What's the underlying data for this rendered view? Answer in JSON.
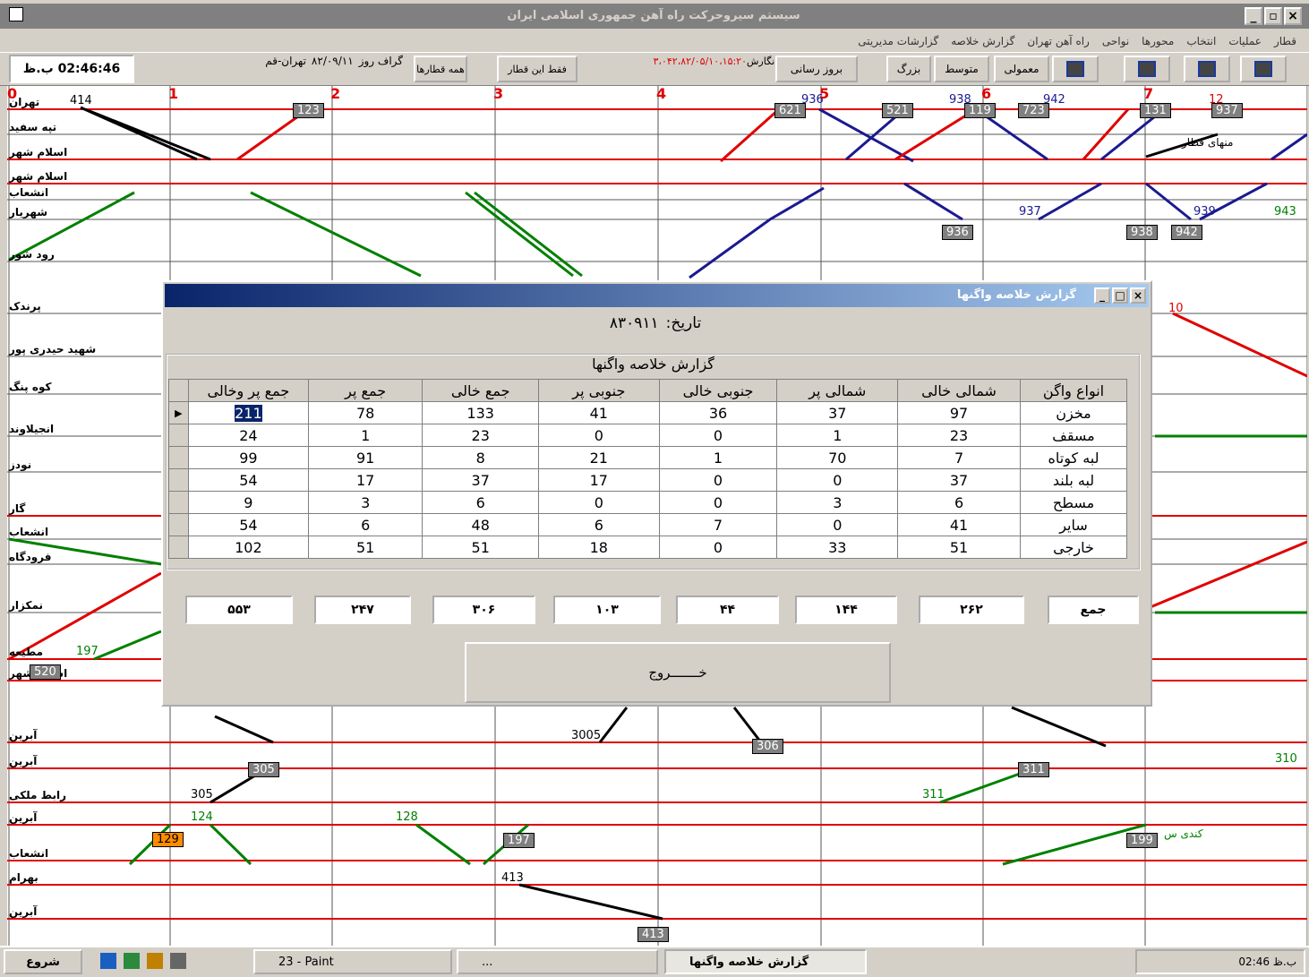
{
  "window": {
    "title": "سیستم سیروحرکت راه آهن جمهوری اسلامی ایران",
    "menu": [
      "قطار",
      "عملیات",
      "انتخاب",
      "محورها",
      "نواحی",
      "راه آهن تهران",
      "گزارش خلاصه",
      "گزارشات مدیریتی"
    ]
  },
  "toolbar": {
    "clock": "02:46:46 ب.ظ",
    "graph_label": "گراف روز",
    "graph_date": "۸۲/۰۹/۱۱",
    "route": "تهران-قم",
    "all_trains": "همه قطارها",
    "this_train": "فقط این قطار",
    "version_value": "۳،۰۴۲،۸۲/۰۵/۱۰،۱۵:۲۰",
    "version_label": "نگارش:",
    "refresh": "بروز رسانی",
    "large": "بزرگ",
    "medium": "متوسط",
    "normal": "معمولی"
  },
  "graph": {
    "hours": [
      "0",
      "1",
      "2",
      "3",
      "4",
      "5",
      "6",
      "7"
    ],
    "stations": [
      "تهران",
      "تپه سفید",
      "اسلام شهر",
      "اسلام شهر",
      "انشعاب",
      "شهریار",
      "رود شور",
      "پرندک",
      "شهید حیدری پور",
      "کوه پنگ",
      "انجیلاوند",
      "نودز",
      "گار",
      "انشعاب",
      "فرودگاه",
      "نمکزار",
      "مطیعه",
      "اسلام شهر",
      "آبرین",
      "آبرین",
      "رابط ملکی",
      "آبرین",
      "انشعاب",
      "بهرام",
      "آبرین"
    ],
    "train_labels": [
      "414",
      "123",
      "621",
      "936",
      "521",
      "938",
      "119",
      "723",
      "942",
      "131",
      "12",
      "937",
      "937",
      "936",
      "938",
      "942",
      "939",
      "943",
      "10",
      "197",
      "520",
      "3005",
      "306",
      "305",
      "311",
      "310",
      "305",
      "311",
      "124",
      "128",
      "129",
      "197",
      "199",
      "413",
      "413"
    ],
    "annotations": [
      "منهای قطار",
      "کندی س"
    ]
  },
  "dialog": {
    "title": "گزارش خلاصه واگنها",
    "date_label": "تاریخ:",
    "date": "۸۳۰۹۱۱",
    "table_caption": "گزارش خلاصه واگنها",
    "columns": [
      "انواع واگن",
      "شمالی خالی",
      "شمالی پر",
      "جنوبی خالی",
      "جنوبی پر",
      "جمع خالی",
      "جمع پر",
      "جمع پر وخالی"
    ],
    "rows": [
      [
        "مخزن",
        97,
        37,
        36,
        41,
        133,
        78,
        211
      ],
      [
        "مسقف",
        23,
        1,
        0,
        0,
        23,
        1,
        24
      ],
      [
        "لبه کوتاه",
        7,
        70,
        1,
        21,
        8,
        91,
        99
      ],
      [
        "لبه بلند",
        37,
        0,
        0,
        17,
        37,
        17,
        54
      ],
      [
        "مسطح",
        6,
        3,
        0,
        0,
        6,
        3,
        9
      ],
      [
        "سایر",
        41,
        0,
        7,
        6,
        48,
        6,
        54
      ],
      [
        "خارجی",
        51,
        33,
        0,
        18,
        51,
        51,
        102
      ]
    ],
    "totals_label": "جمع",
    "totals": [
      "۲۶۲",
      "۱۴۴",
      "۴۴",
      "۱۰۳",
      "۳۰۶",
      "۲۴۷",
      "۵۵۳"
    ],
    "exit": "خـــــــروج"
  },
  "taskbar": {
    "start": "شروع",
    "tasks": [
      "23 - Paint",
      "...",
      "گزارش خلاصه واگنها"
    ],
    "clock": "02:46 ب.ظ"
  }
}
